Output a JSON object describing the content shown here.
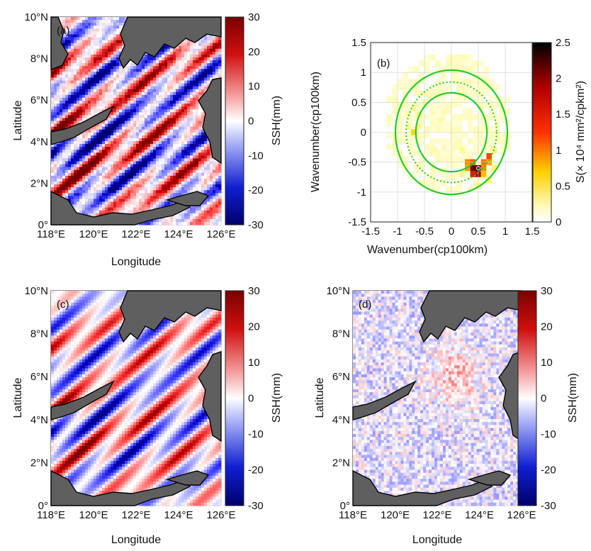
{
  "colors": {
    "ssh_positive": "#8b0000",
    "ssh_negative": "#000080",
    "land": "#5f5f5f",
    "ring": "#22cc22"
  },
  "chart_data": [
    {
      "panel": "(a)",
      "type": "heatmap",
      "title": "",
      "xlabel": "Longitude",
      "ylabel": "Latitude",
      "xlim": [
        118,
        126
      ],
      "ylim": [
        0,
        10
      ],
      "xticks": [
        "118°E",
        "120°E",
        "122°E",
        "124°E",
        "126°E"
      ],
      "yticks": [
        "0°",
        "2°N",
        "4°N",
        "6°N",
        "8°N",
        "10°N"
      ],
      "colorbar": {
        "label": "SSH(mm)",
        "range": [
          -30,
          30
        ],
        "ticks": [
          "30",
          "20",
          "10",
          "0",
          "-10",
          "-20",
          "-30"
        ]
      },
      "description_values": {
        "max_amplitude_mm": 30
      }
    },
    {
      "panel": "(b)",
      "type": "heatmap",
      "xlabel": "Wavenumber(cp100km)",
      "ylabel": "Wavenumber(cp100km)",
      "xlim": [
        -1.5,
        1.5
      ],
      "ylim": [
        -1.5,
        1.5
      ],
      "xticks": [
        "-1.5",
        "-1",
        "-0.5",
        "0",
        "0.5",
        "1",
        "1.5"
      ],
      "yticks": [
        "1.5",
        "1",
        "0.5",
        "0",
        "-0.5",
        "-1",
        "-1.5"
      ],
      "colorbar": {
        "label": "S(× 10⁴ mm²/cpkm²)",
        "range": [
          0,
          2.5
        ],
        "ticks": [
          "2.5",
          "2",
          "1.5",
          "1",
          "0.5",
          "0"
        ]
      },
      "rings": [
        {
          "radius": 1.04,
          "style": "solid"
        },
        {
          "radius": 0.84,
          "style": "dotted"
        },
        {
          "radius": 0.66,
          "style": "solid"
        }
      ],
      "peak": {
        "kx": 0.5,
        "ky": -0.6,
        "value": 2.4
      },
      "cells": [
        {
          "kx": 0.4,
          "ky": -0.6,
          "v": 2.2
        },
        {
          "kx": 0.5,
          "ky": -0.6,
          "v": 2.4
        },
        {
          "kx": 0.5,
          "ky": -0.7,
          "v": 2.0
        },
        {
          "kx": 0.4,
          "ky": -0.7,
          "v": 1.6
        },
        {
          "kx": 0.7,
          "ky": -0.4,
          "v": 1.2
        },
        {
          "kx": 0.6,
          "ky": -0.5,
          "v": 1.0
        },
        {
          "kx": 0.7,
          "ky": -0.5,
          "v": 0.8
        },
        {
          "kx": 0.3,
          "ky": -0.5,
          "v": 0.9
        },
        {
          "kx": 0.6,
          "ky": -0.7,
          "v": 0.7
        },
        {
          "kx": 0.3,
          "ky": -0.6,
          "v": 0.8
        },
        {
          "kx": 0.4,
          "ky": -0.5,
          "v": 1.1
        },
        {
          "kx": 0.6,
          "ky": -0.6,
          "v": 0.9
        },
        {
          "kx": -0.7,
          "ky": 0.0,
          "v": 0.6
        },
        {
          "kx": -0.7,
          "ky": 0.4,
          "v": 0.3
        },
        {
          "kx": -0.6,
          "ky": 0.3,
          "v": 0.35
        },
        {
          "kx": -0.8,
          "ky": 0.1,
          "v": 0.3
        },
        {
          "kx": -0.6,
          "ky": 0.1,
          "v": 0.3
        },
        {
          "kx": -0.5,
          "ky": 0.5,
          "v": 0.25
        },
        {
          "kx": -0.4,
          "ky": 0.6,
          "v": 0.2
        },
        {
          "kx": -0.8,
          "ky": 0.3,
          "v": 0.25
        },
        {
          "kx": 0.2,
          "ky": -0.3,
          "v": 0.3
        },
        {
          "kx": 0.2,
          "ky": -0.7,
          "v": 0.35
        },
        {
          "kx": 0.8,
          "ky": -0.3,
          "v": 0.4
        },
        {
          "kx": 0.8,
          "ky": -0.6,
          "v": 0.4
        },
        {
          "kx": 0.7,
          "ky": -0.8,
          "v": 0.4
        },
        {
          "kx": 0.5,
          "ky": -0.9,
          "v": 0.35
        },
        {
          "kx": -0.3,
          "ky": -0.3,
          "v": 0.2
        },
        {
          "kx": -0.2,
          "ky": 0.2,
          "v": 0.2
        },
        {
          "kx": 0.0,
          "ky": 0.0,
          "v": 0.15
        },
        {
          "kx": 0.1,
          "ky": -0.2,
          "v": 0.15
        }
      ]
    },
    {
      "panel": "(c)",
      "type": "heatmap",
      "xlabel": "Longitude",
      "ylabel": "Latitude",
      "xlim": [
        118,
        126
      ],
      "ylim": [
        0,
        10
      ],
      "xticks": [
        "118°E",
        "120°E",
        "122°E",
        "124°E",
        "126°E"
      ],
      "yticks": [
        "0°",
        "2°N",
        "4°N",
        "6°N",
        "8°N",
        "10°N"
      ],
      "colorbar": {
        "label": "SSH(mm)",
        "range": [
          -30,
          30
        ],
        "ticks": [
          "30",
          "20",
          "10",
          "0",
          "-10",
          "-20",
          "-30"
        ]
      }
    },
    {
      "panel": "(d)",
      "type": "heatmap",
      "xlabel": "Longitude",
      "ylabel": "Latitude",
      "xlim": [
        118,
        126
      ],
      "ylim": [
        0,
        10
      ],
      "xticks": [
        "118°E",
        "120°E",
        "122°E",
        "124°E",
        "126°E"
      ],
      "yticks": [
        "0°",
        "2°N",
        "4°N",
        "6°N",
        "8°N",
        "10°N"
      ],
      "colorbar": {
        "label": "SSH(mm)",
        "range": [
          -30,
          30
        ],
        "ticks": [
          "30",
          "20",
          "10",
          "0",
          "-10",
          "-20",
          "-30"
        ]
      }
    }
  ]
}
